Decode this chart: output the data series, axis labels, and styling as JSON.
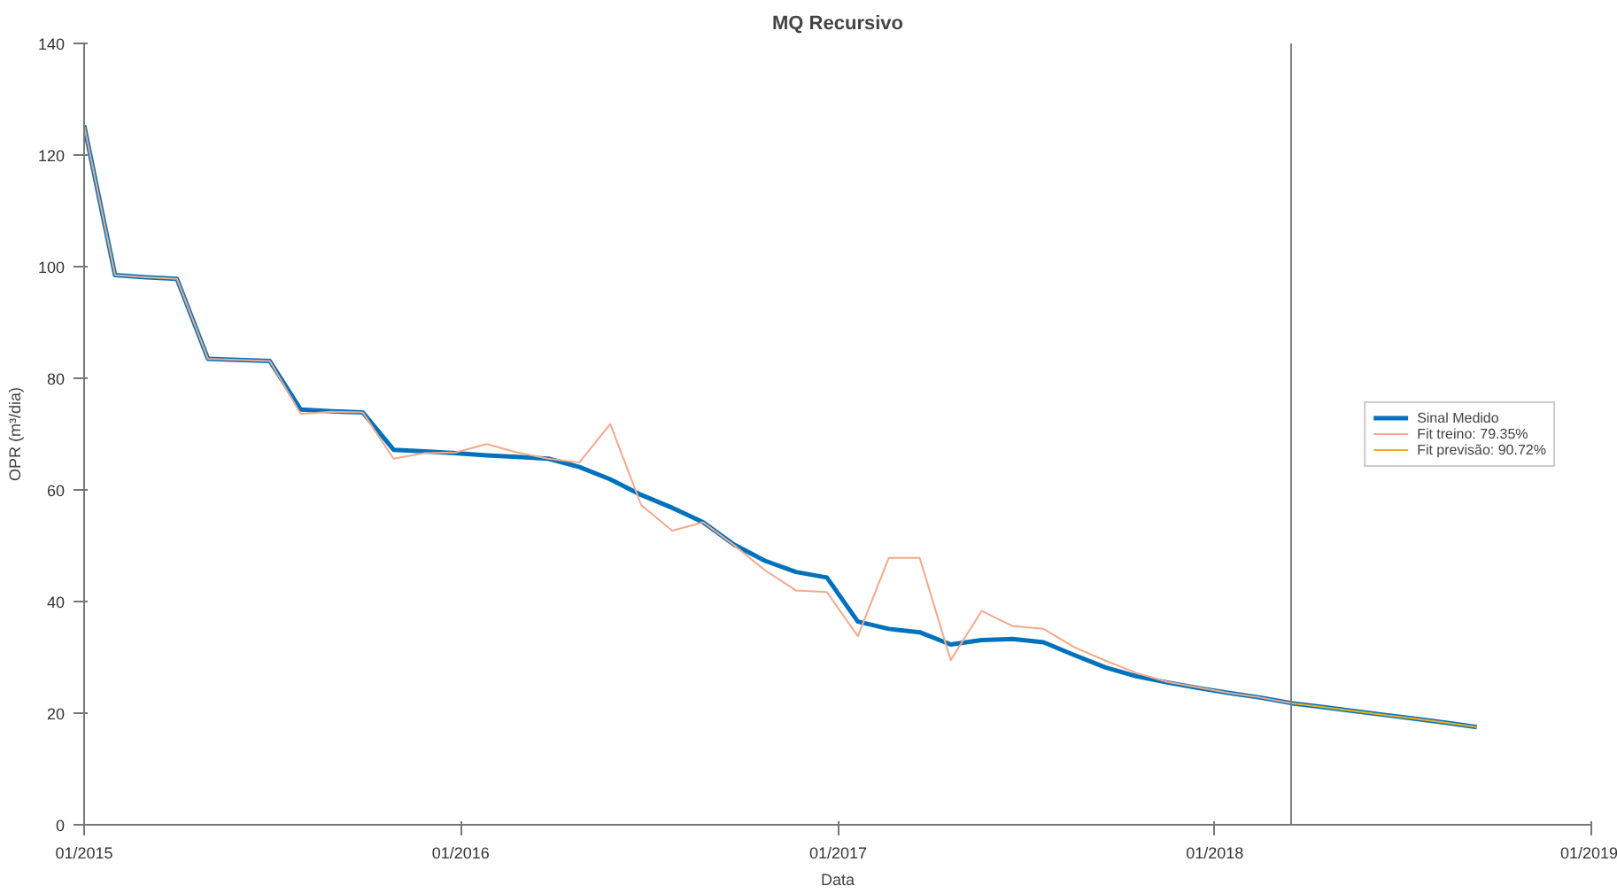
{
  "chart_data": {
    "type": "line",
    "title": "MQ Recursivo",
    "xlabel": "Data",
    "ylabel": "OPR (m³/dia)",
    "x": [
      "2015-01-01",
      "2015-01-31",
      "2015-03-02",
      "2015-04-01",
      "2015-05-01",
      "2015-05-31",
      "2015-06-30",
      "2015-07-30",
      "2015-08-29",
      "2015-09-28",
      "2015-10-28",
      "2015-11-27",
      "2015-12-27",
      "2016-01-26",
      "2016-02-25",
      "2016-03-26",
      "2016-04-25",
      "2016-05-25",
      "2016-06-24",
      "2016-07-24",
      "2016-08-23",
      "2016-09-22",
      "2016-10-22",
      "2016-11-21",
      "2016-12-21",
      "2017-01-20",
      "2017-02-19",
      "2017-03-21",
      "2017-04-20",
      "2017-05-20",
      "2017-06-19",
      "2017-07-19",
      "2017-08-18",
      "2017-09-17",
      "2017-10-17",
      "2017-11-16",
      "2017-12-16",
      "2018-01-15",
      "2018-02-14",
      "2018-03-16",
      "2018-04-15",
      "2018-05-15",
      "2018-06-14",
      "2018-07-14",
      "2018-08-13",
      "2018-09-12"
    ],
    "series": [
      {
        "name": "Sinal Medido",
        "color": "#0072bd",
        "values": [
          125.3,
          98.5,
          98.1,
          97.8,
          83.5,
          83.3,
          83.1,
          74.4,
          74.1,
          73.9,
          67.2,
          66.9,
          66.6,
          66.2,
          65.9,
          65.6,
          64.1,
          61.9,
          59.1,
          56.8,
          54.2,
          50.2,
          47.3,
          45.3,
          44.3,
          36.4,
          35.1,
          34.5,
          32.3,
          33.1,
          33.3,
          32.7,
          30.4,
          28.2,
          26.6,
          25.5,
          24.5,
          23.6,
          22.8,
          21.8,
          21.1,
          20.4,
          19.7,
          19.0,
          18.3,
          17.5
        ]
      },
      {
        "name": "Fit treino: 79.35%",
        "color": "#f4a98a",
        "values": [
          125.3,
          98.5,
          98.1,
          97.8,
          83.5,
          83.3,
          83.1,
          73.6,
          74.0,
          73.9,
          65.6,
          66.6,
          66.7,
          68.2,
          66.7,
          65.6,
          64.9,
          71.8,
          57.3,
          52.7,
          54.2,
          50.1,
          45.6,
          42.0,
          41.7,
          33.8,
          47.8,
          47.8,
          29.5,
          38.3,
          35.6,
          35.1,
          31.8,
          29.4,
          27.2,
          25.6,
          24.6,
          23.6,
          22.8,
          21.8,
          null,
          null,
          null,
          null,
          null,
          null
        ]
      },
      {
        "name": "Fit previsão: 90.72%",
        "color": "#edb120",
        "values": [
          null,
          null,
          null,
          null,
          null,
          null,
          null,
          null,
          null,
          null,
          null,
          null,
          null,
          null,
          null,
          null,
          null,
          null,
          null,
          null,
          null,
          null,
          null,
          null,
          null,
          null,
          null,
          null,
          null,
          null,
          null,
          null,
          null,
          null,
          null,
          null,
          null,
          null,
          null,
          21.8,
          21.1,
          20.4,
          19.7,
          19.0,
          18.3,
          17.5
        ]
      }
    ],
    "xlim": [
      "2015-01-01",
      "2019-01-01"
    ],
    "xticks": [
      {
        "value": "2015-01-01",
        "label": "01/2015"
      },
      {
        "value": "2016-01-01",
        "label": "01/2016"
      },
      {
        "value": "2017-01-01",
        "label": "01/2017"
      },
      {
        "value": "2018-01-01",
        "label": "01/2018"
      },
      {
        "value": "2019-01-01",
        "label": "01/2019"
      }
    ],
    "ylim": [
      0,
      140
    ],
    "yticks": [
      0,
      20,
      40,
      60,
      80,
      100,
      120,
      140
    ],
    "ref_lines": [
      {
        "axis": "x",
        "value": "2018-03-16",
        "color": "#808080"
      }
    ],
    "legend": "right",
    "grid": false,
    "line_style": "solid",
    "marker": "none"
  }
}
